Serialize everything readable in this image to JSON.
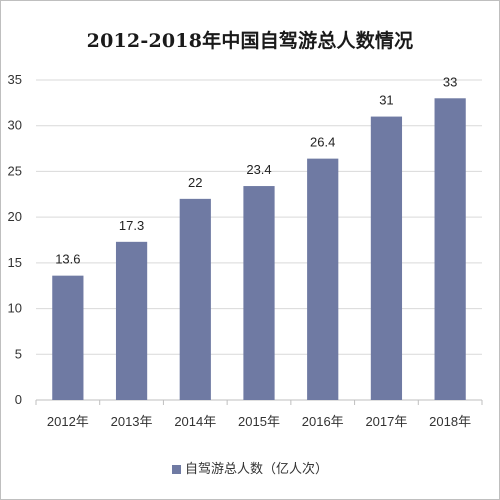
{
  "chart_data": {
    "type": "bar",
    "title": "2012-2018年中国自驾游总人数情况",
    "categories": [
      "2012年",
      "2013年",
      "2014年",
      "2015年",
      "2016年",
      "2017年",
      "2018年"
    ],
    "series": [
      {
        "name": "自驾游总人数（亿人次）",
        "values": [
          13.6,
          17.3,
          22,
          23.4,
          26.4,
          31,
          33
        ],
        "data_labels": [
          "13.6",
          "17.3",
          "22",
          "23.4",
          "26.4",
          "31",
          "33"
        ]
      }
    ],
    "xlabel": "",
    "ylabel": "",
    "ylim": [
      0,
      35
    ],
    "yticks": [
      0,
      5,
      10,
      15,
      20,
      25,
      30,
      35
    ],
    "grid": true,
    "legend_position": "bottom",
    "colors": {
      "bar": "#6f7aa3",
      "grid": "#d9d9d9",
      "axis": "#bfbfbf"
    }
  }
}
